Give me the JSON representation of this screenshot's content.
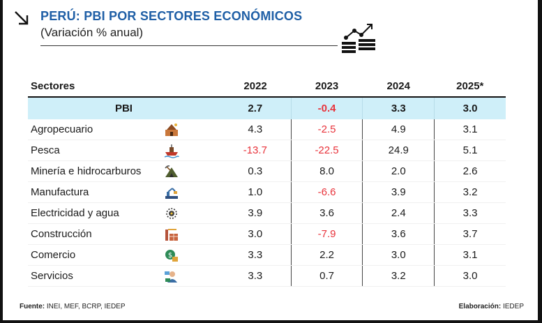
{
  "header": {
    "title": "PERÚ: PBI POR SECTORES ECONÓMICOS",
    "subtitle": "(Variación % anual)"
  },
  "table": {
    "columns": [
      "Sectores",
      "2022",
      "2023",
      "2024",
      "2025*"
    ],
    "pbi": {
      "label": "PBI",
      "values": [
        "2.7",
        "-0.4",
        "3.3",
        "3.0"
      ]
    },
    "rows": [
      {
        "sector": "Agropecuario",
        "icon": "agriculture-icon",
        "values": [
          "4.3",
          "-2.5",
          "4.9",
          "3.1"
        ]
      },
      {
        "sector": "Pesca",
        "icon": "fishing-boat-icon",
        "values": [
          "-13.7",
          "-22.5",
          "24.9",
          "5.1"
        ]
      },
      {
        "sector": "Minería e hidrocarburos",
        "icon": "mining-icon",
        "values": [
          "0.3",
          "8.0",
          "2.0",
          "2.6"
        ]
      },
      {
        "sector": "Manufactura",
        "icon": "factory-robot-icon",
        "values": [
          "1.0",
          "-6.6",
          "3.9",
          "3.2"
        ]
      },
      {
        "sector": "Electricidad y agua",
        "icon": "energy-water-icon",
        "values": [
          "3.9",
          "3.6",
          "2.4",
          "3.3"
        ]
      },
      {
        "sector": "Construcción",
        "icon": "construction-icon",
        "values": [
          "3.0",
          "-7.9",
          "3.6",
          "3.7"
        ]
      },
      {
        "sector": "Comercio",
        "icon": "commerce-icon",
        "values": [
          "3.3",
          "2.2",
          "3.0",
          "3.1"
        ]
      },
      {
        "sector": "Servicios",
        "icon": "services-icon",
        "values": [
          "3.3",
          "0.7",
          "3.2",
          "3.0"
        ]
      }
    ]
  },
  "footer": {
    "source_label": "Fuente:",
    "source_value": "INEI, MEF, BCRP, IEDEP",
    "credit_label": "Elaboración:",
    "credit_value": "IEDEP"
  },
  "colors": {
    "title": "#1f5fa6",
    "highlight_row": "#cfeff9",
    "negative": "#e8323a"
  }
}
